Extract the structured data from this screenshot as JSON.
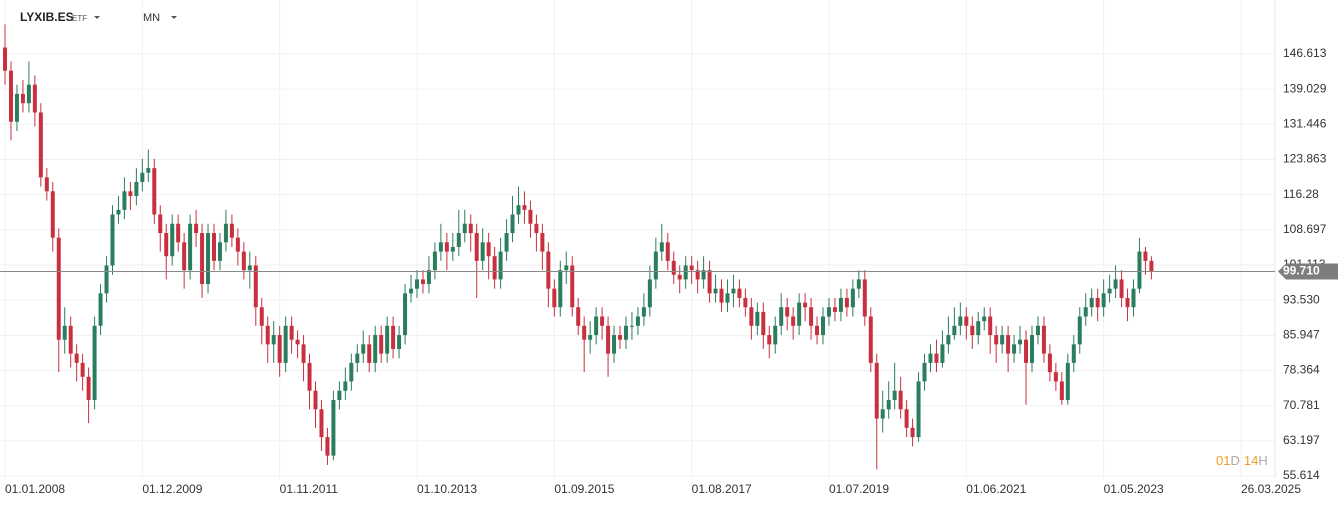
{
  "header": {
    "symbol": "LYXIB.ES",
    "symbol_type": "ETF",
    "interval": "MN"
  },
  "chart_data": {
    "type": "candlestick",
    "open": [
      148,
      143,
      132,
      138,
      136,
      140,
      134,
      120,
      117,
      107,
      85,
      88,
      82,
      80,
      77,
      72,
      88,
      95,
      101,
      112,
      113,
      117,
      116,
      119,
      121,
      122,
      112,
      108,
      103,
      110,
      106,
      100,
      110,
      108,
      97,
      108,
      102,
      106,
      110,
      107,
      104,
      100,
      101,
      92,
      88,
      84,
      86,
      80,
      88,
      85,
      84,
      80,
      74,
      70,
      64,
      60,
      72,
      74,
      76,
      80,
      82,
      84,
      80,
      86,
      82,
      88,
      83,
      86,
      95,
      96,
      98,
      97,
      100,
      104,
      106,
      104,
      105,
      108,
      110,
      108,
      102,
      106,
      103,
      98,
      104,
      108,
      112,
      114,
      113,
      110,
      108,
      104,
      96,
      92,
      100,
      101,
      92,
      88,
      85,
      86,
      90,
      88,
      82,
      86,
      85,
      88,
      88,
      90,
      92,
      98,
      104,
      106,
      102,
      99,
      98,
      101,
      100,
      98,
      100,
      95,
      96,
      93,
      95,
      96,
      94,
      92,
      88,
      91,
      86,
      84,
      88,
      92,
      90,
      88,
      93,
      92,
      88,
      86,
      90,
      92,
      91,
      94,
      92,
      96,
      98,
      90,
      80,
      68,
      70,
      72,
      74,
      70,
      66,
      64,
      76,
      80,
      82,
      80,
      84,
      86,
      88,
      90,
      88,
      86,
      89,
      90,
      86,
      84,
      86,
      82,
      84,
      85,
      80,
      86,
      88,
      82,
      78,
      76,
      72,
      80,
      84,
      90,
      92,
      94,
      92,
      95,
      96,
      98,
      94,
      92,
      96,
      104,
      102
    ],
    "high": [
      153,
      145,
      140,
      141,
      145,
      142,
      136,
      122,
      119,
      109,
      92,
      90,
      84,
      82,
      79,
      90,
      97,
      103,
      114,
      116,
      120,
      119,
      122,
      124,
      126,
      124,
      114,
      110,
      112,
      112,
      108,
      112,
      113,
      110,
      110,
      110,
      108,
      113,
      112,
      109,
      106,
      104,
      103,
      94,
      90,
      89,
      88,
      90,
      90,
      87,
      86,
      82,
      76,
      72,
      66,
      74,
      76,
      79,
      82,
      84,
      87,
      86,
      88,
      88,
      90,
      90,
      88,
      97,
      99,
      100,
      100,
      103,
      106,
      110,
      108,
      108,
      113,
      113,
      112,
      110,
      109,
      108,
      105,
      107,
      111,
      116,
      118,
      117,
      115,
      112,
      110,
      106,
      98,
      102,
      104,
      103,
      94,
      90,
      89,
      92,
      92,
      90,
      88,
      88,
      90,
      91,
      92,
      95,
      101,
      107,
      110,
      108,
      104,
      101,
      103,
      103,
      102,
      103,
      102,
      99,
      98,
      98,
      99,
      98,
      96,
      94,
      93,
      93,
      88,
      90,
      95,
      94,
      92,
      95,
      95,
      94,
      90,
      92,
      94,
      94,
      96,
      96,
      98,
      100,
      100,
      92,
      82,
      74,
      76,
      80,
      77,
      72,
      68,
      78,
      82,
      84,
      85,
      87,
      90,
      92,
      93,
      92,
      90,
      91,
      92,
      92,
      88,
      88,
      88,
      86,
      88,
      87,
      88,
      90,
      90,
      84,
      80,
      78,
      82,
      86,
      92,
      95,
      96,
      96,
      98,
      99,
      101,
      100,
      96,
      98,
      107,
      105,
      103
    ],
    "low": [
      140,
      128,
      130,
      134,
      134,
      131,
      118,
      115,
      104,
      78,
      82,
      79,
      76,
      74,
      67,
      70,
      86,
      93,
      99,
      110,
      111,
      113,
      114,
      117,
      119,
      110,
      104,
      98,
      101,
      104,
      96,
      98,
      105,
      94,
      95,
      100,
      100,
      104,
      105,
      101,
      98,
      96,
      88,
      84,
      80,
      80,
      77,
      78,
      82,
      81,
      76,
      70,
      66,
      61,
      58,
      59,
      70,
      72,
      74,
      78,
      80,
      78,
      78,
      80,
      80,
      81,
      81,
      84,
      93,
      94,
      95,
      95,
      98,
      102,
      100,
      102,
      103,
      106,
      104,
      94,
      100,
      98,
      96,
      96,
      102,
      106,
      110,
      110,
      107,
      104,
      100,
      92,
      90,
      90,
      97,
      90,
      86,
      78,
      82,
      84,
      85,
      77,
      80,
      83,
      83,
      85,
      86,
      88,
      90,
      96,
      102,
      100,
      97,
      95,
      96,
      97,
      95,
      96,
      93,
      93,
      91,
      91,
      92,
      92,
      90,
      85,
      86,
      83,
      81,
      82,
      86,
      87,
      85,
      86,
      89,
      85,
      84,
      84,
      88,
      89,
      89,
      90,
      90,
      94,
      88,
      78,
      57,
      65,
      68,
      70,
      68,
      64,
      62,
      63,
      74,
      78,
      78,
      79,
      82,
      85,
      86,
      85,
      83,
      84,
      87,
      82,
      80,
      82,
      78,
      80,
      82,
      71,
      78,
      84,
      80,
      76,
      74,
      71,
      71,
      78,
      82,
      88,
      90,
      89,
      90,
      93,
      94,
      92,
      89,
      90,
      95,
      99,
      98
    ],
    "close": [
      143,
      132,
      138,
      136,
      140,
      134,
      120,
      117,
      107,
      85,
      88,
      82,
      80,
      77,
      72,
      88,
      95,
      101,
      112,
      113,
      117,
      116,
      119,
      121,
      122,
      112,
      108,
      103,
      110,
      106,
      100,
      110,
      108,
      97,
      108,
      102,
      106,
      110,
      107,
      104,
      100,
      101,
      92,
      88,
      84,
      86,
      80,
      88,
      85,
      84,
      80,
      74,
      70,
      64,
      60,
      72,
      74,
      76,
      80,
      82,
      84,
      80,
      86,
      82,
      88,
      83,
      86,
      95,
      96,
      98,
      97,
      100,
      104,
      106,
      104,
      105,
      108,
      110,
      108,
      102,
      106,
      103,
      98,
      104,
      108,
      112,
      114,
      113,
      110,
      108,
      104,
      96,
      92,
      100,
      101,
      92,
      88,
      85,
      86,
      90,
      88,
      82,
      86,
      85,
      88,
      88,
      90,
      92,
      98,
      104,
      106,
      102,
      99,
      98,
      101,
      100,
      98,
      100,
      95,
      96,
      93,
      95,
      96,
      94,
      92,
      88,
      91,
      86,
      84,
      88,
      92,
      90,
      88,
      93,
      92,
      88,
      86,
      90,
      92,
      91,
      94,
      92,
      96,
      98,
      90,
      80,
      68,
      70,
      72,
      74,
      70,
      66,
      64,
      76,
      80,
      82,
      80,
      84,
      86,
      88,
      90,
      88,
      86,
      89,
      90,
      86,
      84,
      86,
      82,
      84,
      85,
      80,
      86,
      88,
      82,
      78,
      76,
      72,
      80,
      84,
      90,
      92,
      94,
      92,
      95,
      96,
      98,
      94,
      92,
      96,
      104,
      102,
      99.71
    ],
    "up_color": "#2a7d5e",
    "down_color": "#c9303f",
    "xlim": [
      -0.84,
      212.7
    ],
    "xticks": [
      {
        "value": 0,
        "label": "01.01.2008"
      },
      {
        "value": 23,
        "label": "01.12.2009"
      },
      {
        "value": 46,
        "label": "01.11.2011"
      },
      {
        "value": 69,
        "label": "01.10.2013"
      },
      {
        "value": 92,
        "label": "01.09.2015"
      },
      {
        "value": 115,
        "label": "01.08.2017"
      },
      {
        "value": 138,
        "label": "01.07.2019"
      },
      {
        "value": 161,
        "label": "01.06.2021"
      },
      {
        "value": 184,
        "label": "01.05.2023"
      },
      {
        "value": 207,
        "label": "26.03.2025"
      }
    ],
    "ylim": [
      55.18,
      158.25
    ],
    "yticks": [
      55.614,
      63.197,
      70.781,
      78.364,
      85.947,
      {
        "value": 93.53,
        "label": "93.530"
      },
      101.113,
      108.697,
      116.28,
      123.863,
      131.446,
      139.029,
      146.613
    ],
    "grid": true,
    "last_price": {
      "value": 99.71,
      "label": "99.710"
    },
    "countdown": {
      "days": "01",
      "days_unit": "D",
      "hours": "14",
      "hours_unit": "H"
    }
  }
}
